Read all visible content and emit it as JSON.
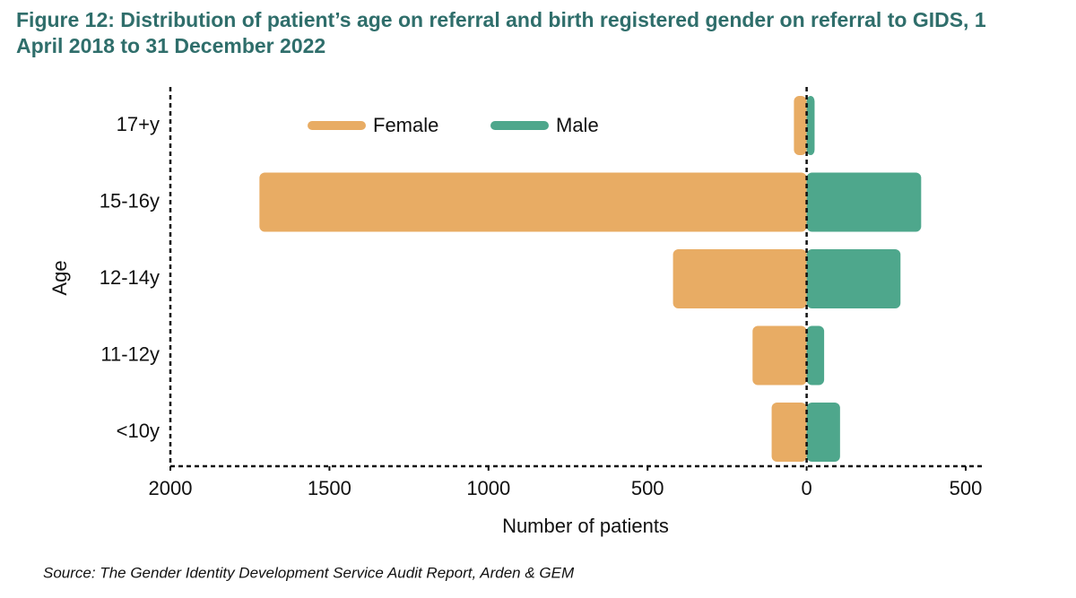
{
  "chart_data": {
    "type": "diverging-bar",
    "title": "Figure 12: Distribution of patient’s age on referral and birth registered gender on referral to GIDS, 1 April 2018 to 31 December 2022",
    "categories": [
      "17+y",
      "15-16y",
      "12-14y",
      "11-12y",
      "<10y"
    ],
    "series": [
      {
        "name": "Female",
        "color": "#e8ac64",
        "values": [
          -40,
          -1720,
          -420,
          -170,
          -110
        ]
      },
      {
        "name": "Male",
        "color": "#4ea78c",
        "values": [
          25,
          360,
          295,
          55,
          105
        ]
      }
    ],
    "xlim": [
      -2000,
      500
    ],
    "xticks": [
      {
        "value": -2000,
        "label": "2000"
      },
      {
        "value": -1500,
        "label": "1500"
      },
      {
        "value": -1000,
        "label": "1000"
      },
      {
        "value": -500,
        "label": "500"
      },
      0,
      500
    ],
    "xlabel": "Number of patients",
    "ylabel": "Age",
    "source": "Source: The Gender Identity Development Service Audit Report, Arden & GEM"
  }
}
